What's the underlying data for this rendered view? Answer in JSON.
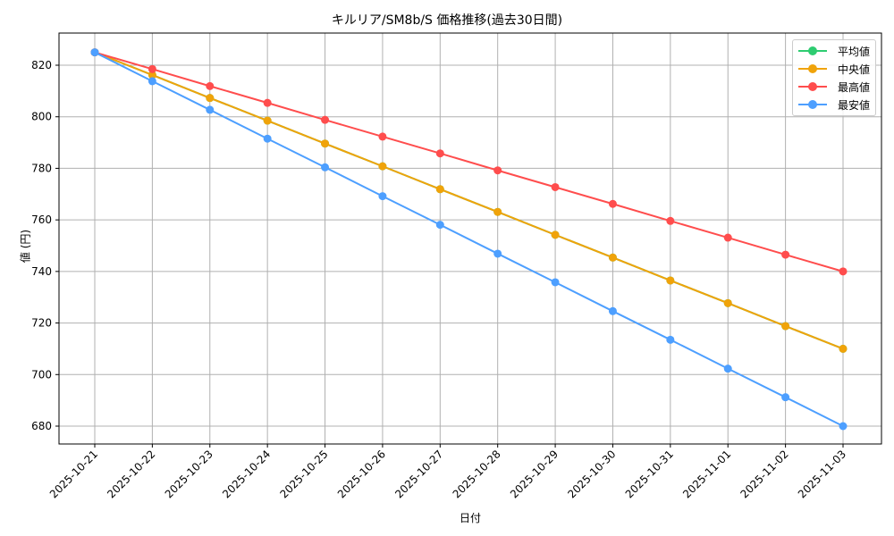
{
  "chart_data": {
    "type": "line",
    "title": "キルリア/SM8b/S 価格推移(過去30日間)",
    "xlabel": "日付",
    "ylabel": "値 (円)",
    "x": [
      "2025-10-21",
      "2025-10-22",
      "2025-10-23",
      "2025-10-24",
      "2025-10-25",
      "2025-10-26",
      "2025-10-27",
      "2025-10-28",
      "2025-10-29",
      "2025-10-30",
      "2025-10-31",
      "2025-11-01",
      "2025-11-02",
      "2025-11-03"
    ],
    "ylim": [
      673,
      832
    ],
    "yticks": [
      680,
      700,
      720,
      740,
      760,
      780,
      800,
      820
    ],
    "grid": true,
    "legend_position": "upper right",
    "series": [
      {
        "name": "平均値",
        "color": "#2ecc71",
        "values": [
          825,
          816.2,
          807.3,
          798.5,
          789.6,
          780.8,
          771.9,
          763.1,
          754.2,
          745.4,
          736.5,
          727.7,
          718.8,
          710
        ]
      },
      {
        "name": "中央値",
        "color": "#f0a30a",
        "values": [
          825,
          816.2,
          807.3,
          798.5,
          789.6,
          780.8,
          771.9,
          763.1,
          754.2,
          745.4,
          736.5,
          727.7,
          718.8,
          710
        ]
      },
      {
        "name": "最高値",
        "color": "#ff4d4d",
        "values": [
          825,
          818.5,
          811.9,
          805.4,
          798.8,
          792.3,
          785.8,
          779.2,
          772.7,
          766.2,
          759.6,
          753.1,
          746.5,
          740
        ]
      },
      {
        "name": "最安値",
        "color": "#4d9fff",
        "values": [
          825,
          813.8,
          802.7,
          791.5,
          780.4,
          769.2,
          758.1,
          746.9,
          735.8,
          724.6,
          713.5,
          702.3,
          691.2,
          680
        ]
      }
    ]
  },
  "legend": {
    "items": [
      {
        "label": "平均値",
        "color": "#2ecc71"
      },
      {
        "label": "中央値",
        "color": "#f0a30a"
      },
      {
        "label": "最高値",
        "color": "#ff4d4d"
      },
      {
        "label": "最安値",
        "color": "#4d9fff"
      }
    ]
  }
}
